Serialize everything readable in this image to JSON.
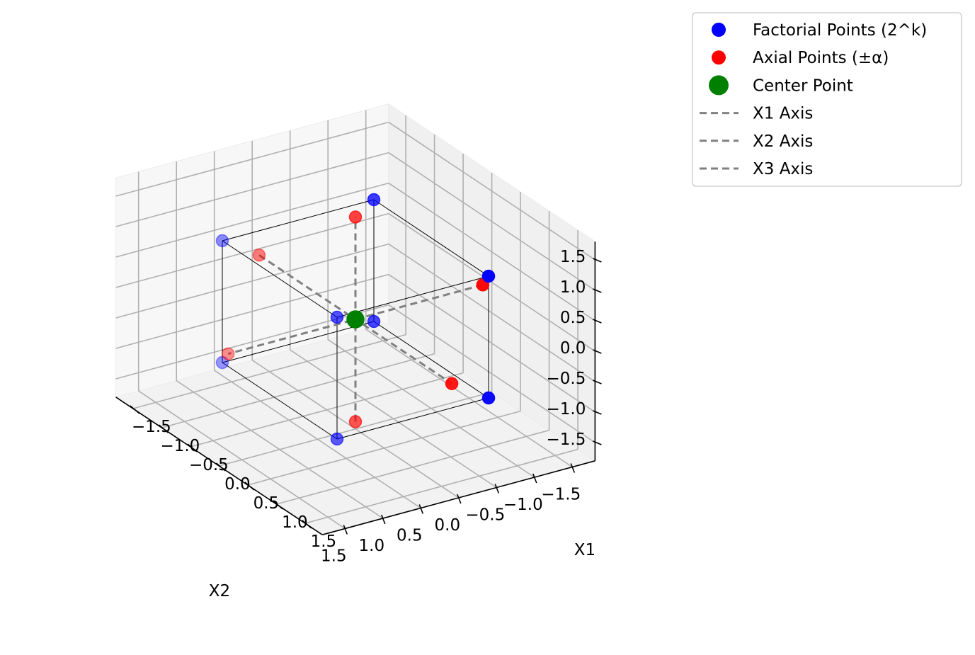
{
  "chart_data": {
    "type": "scatter",
    "projection": "3d",
    "xlabel": "X1",
    "ylabel": "X2",
    "zlabel": "",
    "xlim": [
      -1.8,
      1.8
    ],
    "ylim": [
      -1.8,
      1.8
    ],
    "zlim": [
      -1.8,
      1.8
    ],
    "ticks": [
      -1.5,
      -1.0,
      -0.5,
      0.0,
      0.5,
      1.0,
      1.5
    ],
    "tick_labels": [
      "−1.5",
      "−1.0",
      "−0.5",
      "0.0",
      "0.5",
      "1.0",
      "1.5"
    ],
    "grid": true,
    "legend_position": "outside-upper-right",
    "series": [
      {
        "name": "Factorial Points (2^k)",
        "color": "#0000ff",
        "marker": "circle",
        "points": [
          [
            -1,
            -1,
            -1
          ],
          [
            1,
            -1,
            -1
          ],
          [
            -1,
            1,
            -1
          ],
          [
            1,
            1,
            -1
          ],
          [
            -1,
            -1,
            1
          ],
          [
            1,
            -1,
            1
          ],
          [
            -1,
            1,
            1
          ],
          [
            1,
            1,
            1
          ]
        ]
      },
      {
        "name": "Axial Points (±α)",
        "color": "#ff0000",
        "marker": "circle",
        "alpha": 1.68,
        "points": [
          [
            -1.68,
            0,
            0
          ],
          [
            1.68,
            0,
            0
          ],
          [
            0,
            -1.68,
            0
          ],
          [
            0,
            1.68,
            0
          ],
          [
            0,
            0,
            -1.68
          ],
          [
            0,
            0,
            1.68
          ]
        ]
      },
      {
        "name": "Center Point",
        "color": "#008000",
        "marker": "circle",
        "points": [
          [
            0,
            0,
            0
          ]
        ]
      }
    ],
    "axis_lines": [
      {
        "name": "X1 Axis",
        "color": "#808080",
        "style": "dashed",
        "from": [
          -1.68,
          0,
          0
        ],
        "to": [
          1.68,
          0,
          0
        ]
      },
      {
        "name": "X2 Axis",
        "color": "#808080",
        "style": "dashed",
        "from": [
          0,
          -1.68,
          0
        ],
        "to": [
          0,
          1.68,
          0
        ]
      },
      {
        "name": "X3 Axis",
        "color": "#808080",
        "style": "dashed",
        "from": [
          0,
          0,
          -1.68
        ],
        "to": [
          0,
          0,
          1.68
        ]
      }
    ],
    "cube_edges_color": "#000000"
  }
}
